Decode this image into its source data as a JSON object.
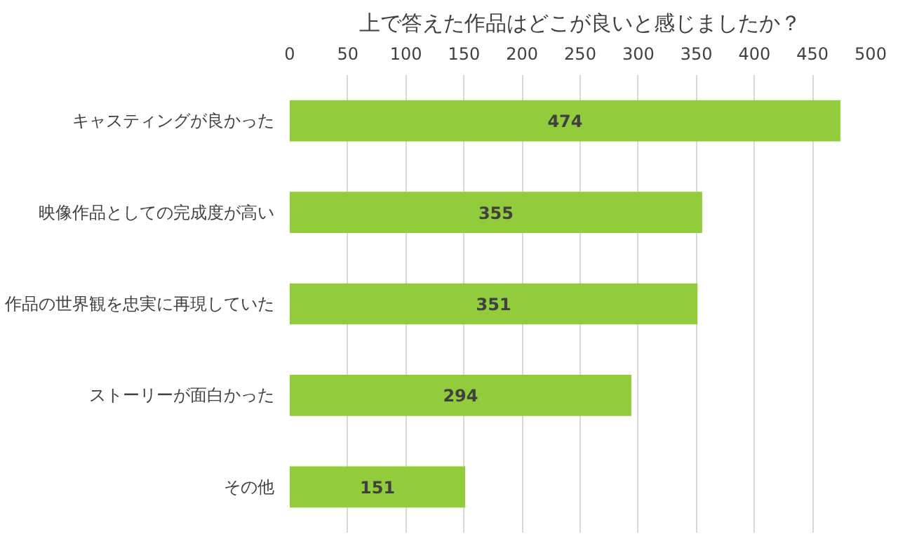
{
  "chart_data": {
    "type": "bar",
    "orientation": "horizontal",
    "title": "上で答えた作品はどこが良いと感じましたか？",
    "categories": [
      "キャスティングが良かった",
      "映像作品としての完成度が高い",
      "作品の世界観を忠実に再現していた",
      "ストーリーが面白かった",
      "その他"
    ],
    "values": [
      474,
      355,
      351,
      294,
      151
    ],
    "color": "#92cc3c",
    "xlim": [
      0,
      500
    ],
    "xticks": [
      0,
      50,
      100,
      150,
      200,
      250,
      300,
      350,
      400,
      450,
      500
    ],
    "grid": "x",
    "data_labels": true
  }
}
